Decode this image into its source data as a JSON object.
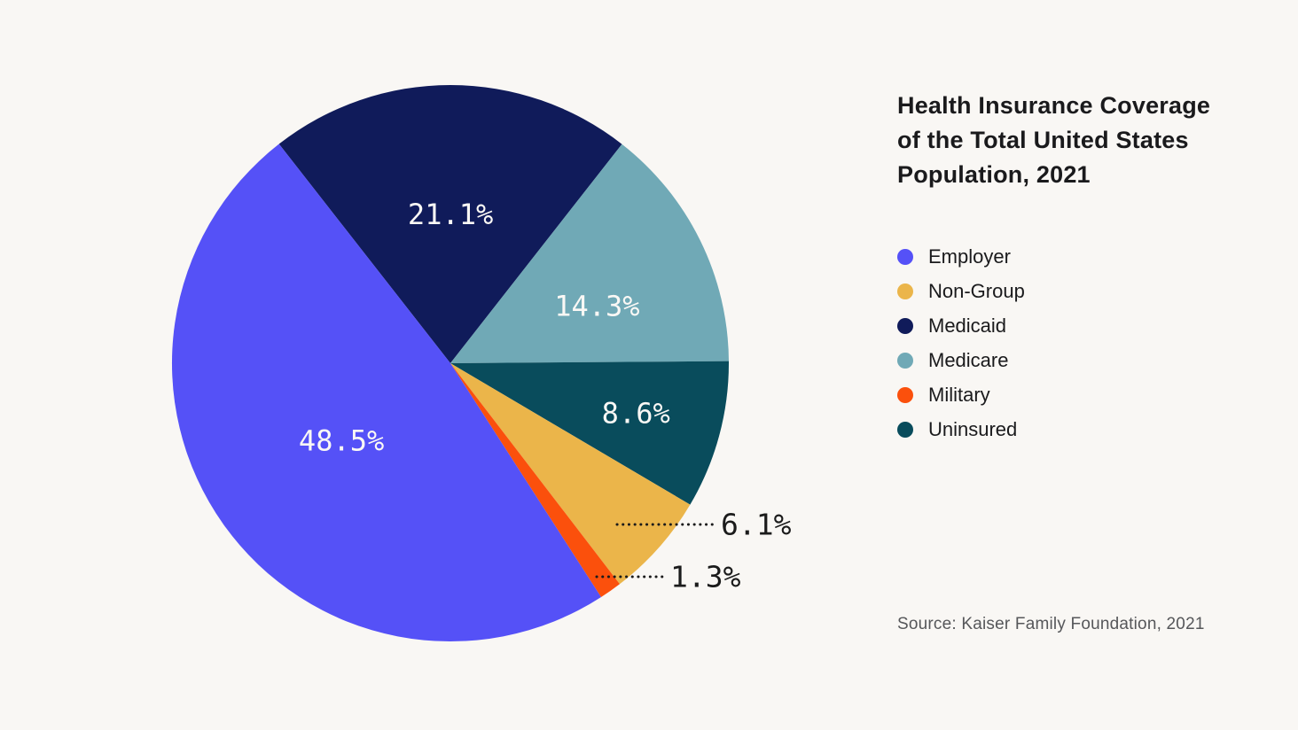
{
  "header": {
    "title": "Health Insurance Coverage of the Total United States Population, 2021",
    "title_lines": [
      "Health Insurance Coverage",
      "of the Total United States",
      "Population, 2021"
    ]
  },
  "source_note": "Source: Kaiser Family Foundation, 2021",
  "colors": {
    "background": "#F9F7F4",
    "text": "#1A1A1C",
    "source_text": "#56575A",
    "inside_label": "#FAF8F5",
    "outside_label": "#1B1B1B",
    "employer": "#5551F7",
    "non_group": "#EBB54A",
    "medicaid": "#101B5A",
    "medicare": "#70A9B6",
    "military": "#FB500C",
    "uninsured": "#094C5C"
  },
  "chart_data": {
    "type": "pie",
    "title": "Health Insurance Coverage of the Total United States Population, 2021",
    "categories": [
      "Employer",
      "Non-Group",
      "Medicaid",
      "Medicare",
      "Military",
      "Uninsured"
    ],
    "values": [
      48.5,
      6.1,
      21.1,
      14.3,
      1.3,
      8.6
    ],
    "legend_position": "right",
    "start_angle_deg": -38.0,
    "clockwise_order": [
      "Medicaid",
      "Medicare",
      "Uninsured",
      "Non-Group",
      "Military",
      "Employer"
    ],
    "slices": [
      {
        "label": "Employer",
        "value": 48.5,
        "display": "48.5%",
        "color": "#5551F7",
        "label_placement": "inside"
      },
      {
        "label": "Non-Group",
        "value": 6.1,
        "display": "6.1%",
        "color": "#EBB54A",
        "label_placement": "outside"
      },
      {
        "label": "Medicaid",
        "value": 21.1,
        "display": "21.1%",
        "color": "#101B5A",
        "label_placement": "inside"
      },
      {
        "label": "Medicare",
        "value": 14.3,
        "display": "14.3%",
        "color": "#70A9B6",
        "label_placement": "inside"
      },
      {
        "label": "Military",
        "value": 1.3,
        "display": "1.3%",
        "color": "#FB500C",
        "label_placement": "outside"
      },
      {
        "label": "Uninsured",
        "value": 8.6,
        "display": "8.6%",
        "color": "#094C5C",
        "label_placement": "inside"
      }
    ]
  }
}
